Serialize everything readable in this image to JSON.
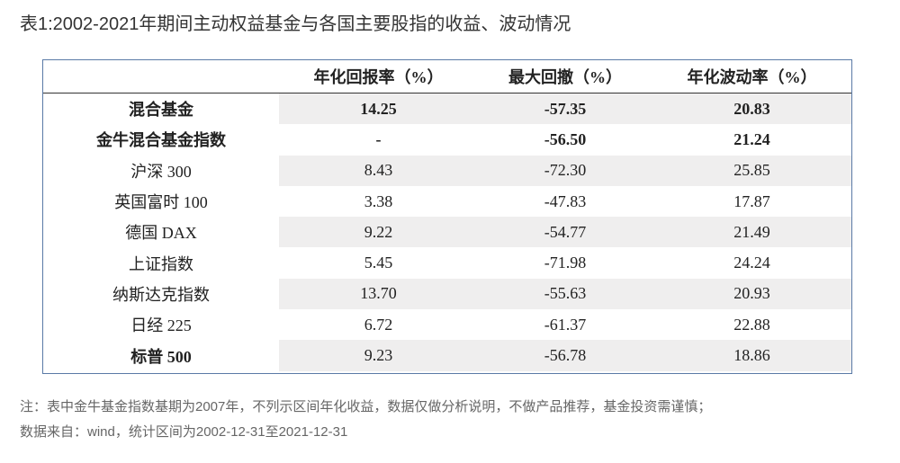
{
  "title": "表1:2002-2021年期间主动权益基金与各国主要股指的收益、波动情况",
  "table": {
    "header": [
      "年化回报率（%）",
      "最大回撤（%）",
      "年化波动率（%）"
    ],
    "rows": [
      [
        "混合基金",
        "14.25",
        "-57.35",
        "20.83"
      ],
      [
        "金牛混合基金指数",
        "-",
        "-56.50",
        "21.24"
      ],
      [
        "沪深 300",
        "8.43",
        "-72.30",
        "25.85"
      ],
      [
        "英国富时 100",
        "3.38",
        "-47.83",
        "17.87"
      ],
      [
        "德国 DAX",
        "9.22",
        "-54.77",
        "21.49"
      ],
      [
        "上证指数",
        "5.45",
        "-71.98",
        "24.24"
      ],
      [
        "纳斯达克指数",
        "13.70",
        "-55.63",
        "20.93"
      ],
      [
        "日经 225",
        "6.72",
        "-61.37",
        "22.88"
      ],
      [
        "标普 500",
        "9.23",
        "-56.78",
        "18.86"
      ]
    ]
  },
  "notes": [
    "注：表中金牛基金指数基期为2007年，不列示区间年化收益，数据仅做分析说明，不做产品推荐，基金投资需谨慎；",
    "数据来自：wind，统计区间为2002-12-31至2021-12-31"
  ]
}
